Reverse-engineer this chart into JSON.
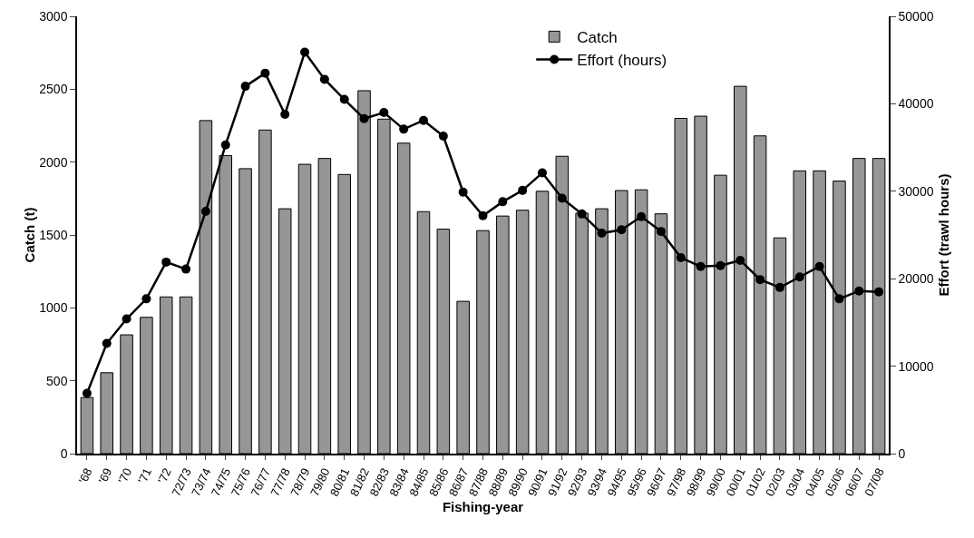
{
  "chart_data": {
    "type": "bar",
    "xlabel": "Fishing-year",
    "ylabel": "Catch (t)",
    "y2label": "Effort (trawl hours)",
    "categories": [
      "'68",
      "'69",
      "'70",
      "'71",
      "'72",
      "72/73",
      "73/74",
      "74/75",
      "75/76",
      "76/77",
      "77/78",
      "78/79",
      "79/80",
      "80/81",
      "81/82",
      "82/83",
      "83/84",
      "84/85",
      "85/86",
      "86/87",
      "87/88",
      "88/89",
      "89/90",
      "90/91",
      "91/92",
      "92/93",
      "93/94",
      "94/95",
      "95/96",
      "96/97",
      "97/98",
      "98/99",
      "99/00",
      "00/01",
      "01/02",
      "02/03",
      "03/04",
      "04/05",
      "05/06",
      "06/07",
      "07/08"
    ],
    "series": [
      {
        "name": "Catch",
        "color": "#969696",
        "values": [
          385,
          555,
          815,
          935,
          1075,
          1075,
          2285,
          2045,
          1955,
          2220,
          1680,
          1985,
          2025,
          1915,
          2490,
          2295,
          2130,
          1660,
          1540,
          1045,
          1530,
          1630,
          1670,
          1800,
          2040,
          1650,
          1680,
          1805,
          1810,
          1645,
          2300,
          2315,
          1910,
          2520,
          2180,
          1480,
          1940,
          1940,
          1870,
          2025,
          2025
        ]
      },
      {
        "name": "Effort (hours)",
        "type": "line",
        "axis": "y2",
        "color": "#000000",
        "marker": "circle",
        "line_style": "solid",
        "values": [
          6900,
          12600,
          15400,
          17700,
          21900,
          21100,
          27700,
          35300,
          42000,
          43500,
          38800,
          45900,
          42800,
          40500,
          38300,
          39000,
          37100,
          38100,
          36300,
          29900,
          27200,
          28800,
          30100,
          32100,
          29200,
          27400,
          25200,
          25600,
          27100,
          25400,
          22400,
          21400,
          21500,
          22100,
          19900,
          19000,
          20200,
          21400,
          17700,
          18600,
          18500
        ]
      }
    ],
    "ylim": [
      0,
      3000
    ],
    "yticks": [
      0,
      500,
      1000,
      1500,
      2000,
      2500,
      3000
    ],
    "y2lim": [
      0,
      50000
    ],
    "y2ticks": [
      0,
      10000,
      20000,
      30000,
      40000,
      50000
    ],
    "grid": false,
    "legend": "top"
  }
}
